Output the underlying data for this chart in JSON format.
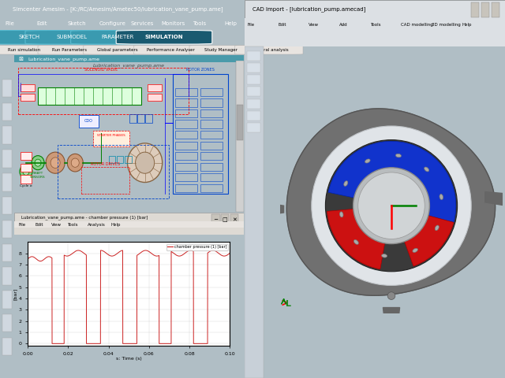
{
  "bg_color": "#b0bec5",
  "title_bar_color": "#2196a0",
  "title_text": "Simcenter Amesim - [K:/RC/Amesim/Ametec50/lubrication_vane_pump.ame]",
  "menu_bg": "#3a8a96",
  "toolbar_bg": "#4a9aaa",
  "tab_bar_bg": "#3a8a96",
  "tab_active_bg": "#2196a0",
  "tab_active_text": "#ffffff",
  "tab_inactive_bg": "#4aabb8",
  "tab_inactive_text": "#ffffff",
  "subtoolbar_bg": "#dedad4",
  "scheme_bg": "#ffffff",
  "scheme_border": "#888888",
  "plot_bg": "#ffffff",
  "plot_title": "Lubrication_vane_pump.ame - chamber pressure (1) [bar]",
  "plot_xlabel": "s: Time (s)",
  "plot_ylabel": "[bar]",
  "plot_legend": "chamber pressure (1) [bar]",
  "plot_color": "#cc2222",
  "x_ticks": [
    0.0,
    0.02,
    0.04,
    0.06,
    0.08,
    0.1
  ],
  "y_ticks": [
    0,
    1,
    2,
    3,
    4,
    5,
    6,
    7,
    8
  ],
  "cad_bg": "#b8c4cc",
  "cad_title_bg": "#c8d0d8",
  "cad_viewport_bg": "#b8c4cc",
  "pump_outer_bg": "#888888",
  "pump_ring_white": "#dde0e4",
  "pump_dark": "#444444",
  "pump_blue": "#1a44cc",
  "pump_red": "#cc1111",
  "pump_inner_rotor": "#cccccc",
  "vane_color": "#999999",
  "left_sidebar_bg": "#c8d0d8",
  "right_sidebar_bg": "#c0c8d0",
  "main_left_bg": "#e8e4e0",
  "win_border": "#888888"
}
